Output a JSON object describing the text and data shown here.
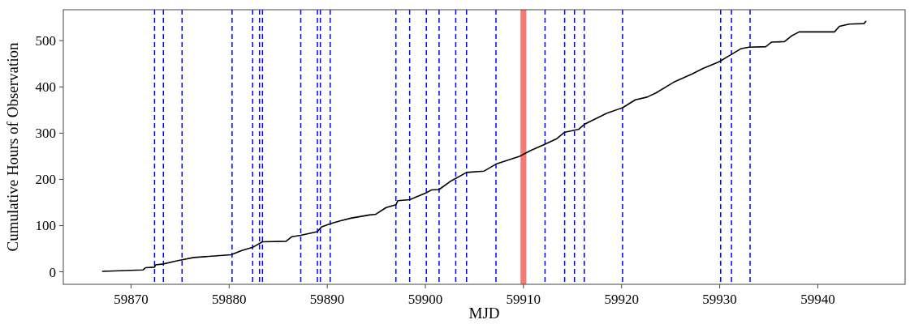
{
  "chart_data": {
    "type": "line",
    "xlabel": "MJD",
    "ylabel": "Cumulative Hours of Observation",
    "xlim": [
      59863.1,
      59948.9
    ],
    "ylim": [
      -27,
      567
    ],
    "xticks": [
      59870,
      59880,
      59890,
      59900,
      59910,
      59920,
      59930,
      59940
    ],
    "yticks": [
      0,
      100,
      200,
      300,
      400,
      500
    ],
    "grid": false,
    "series": [
      {
        "color": "#000000",
        "x": [
          59867.1,
          59871.2,
          59871.5,
          59872.4,
          59872.5,
          59873.3,
          59874.5,
          59875.2,
          59876.4,
          59880.2,
          59881.3,
          59882.4,
          59883.4,
          59885.8,
          59886.4,
          59887.3,
          59889.0,
          59889.4,
          59890.3,
          59891.3,
          59892.4,
          59894.3,
          59894.9,
          59896.0,
          59897.0,
          59897.2,
          59898.4,
          59900.1,
          59900.6,
          59901.4,
          59902.5,
          59904.2,
          59906.0,
          59907.2,
          59909.6,
          59910.7,
          59912.2,
          59913.4,
          59914.2,
          59915.6,
          59916.2,
          59918.5,
          59920.1,
          59921.4,
          59922.6,
          59923.5,
          59925.3,
          59927.2,
          59928.3,
          59929.9,
          59931.1,
          59932.2,
          59933.0,
          59934.7,
          59935.3,
          59936.6,
          59937.3,
          59938.1,
          59941.7,
          59942.2,
          59943.2,
          59944.7,
          59944.9
        ],
        "values": [
          1,
          4,
          9,
          10,
          15,
          17,
          23,
          26,
          31,
          37,
          46,
          53,
          65,
          66,
          76,
          79,
          87,
          97,
          104,
          110,
          116,
          123,
          124,
          139,
          145,
          154,
          156,
          171,
          177,
          178,
          195,
          215,
          218,
          233,
          250,
          262,
          276,
          288,
          302,
          308,
          319,
          343,
          355,
          372,
          378,
          387,
          410,
          428,
          440,
          454,
          469,
          483,
          486,
          487,
          497,
          498,
          510,
          519,
          519,
          531,
          536,
          537,
          542
        ]
      }
    ],
    "line_style": "solid",
    "marker": "none",
    "ref_lines": [
      {
        "axis": "x",
        "value": 59872.4,
        "color": "#0000ff",
        "line_style": "dashed"
      },
      {
        "axis": "x",
        "value": 59873.3,
        "color": "#0000ff",
        "line_style": "dashed"
      },
      {
        "axis": "x",
        "value": 59875.2,
        "color": "#0000ff",
        "line_style": "dashed"
      },
      {
        "axis": "x",
        "value": 59880.3,
        "color": "#0000ff",
        "line_style": "dashed"
      },
      {
        "axis": "x",
        "value": 59882.4,
        "color": "#0000ff",
        "line_style": "dashed"
      },
      {
        "axis": "x",
        "value": 59883.1,
        "color": "#0000ff",
        "line_style": "dashed"
      },
      {
        "axis": "x",
        "value": 59883.4,
        "color": "#0000ff",
        "line_style": "dashed"
      },
      {
        "axis": "x",
        "value": 59887.3,
        "color": "#0000ff",
        "line_style": "dashed"
      },
      {
        "axis": "x",
        "value": 59889.0,
        "color": "#0000ff",
        "line_style": "dashed"
      },
      {
        "axis": "x",
        "value": 59889.3,
        "color": "#0000ff",
        "line_style": "dashed"
      },
      {
        "axis": "x",
        "value": 59890.3,
        "color": "#0000ff",
        "line_style": "dashed"
      },
      {
        "axis": "x",
        "value": 59897.0,
        "color": "#0000ff",
        "line_style": "dashed"
      },
      {
        "axis": "x",
        "value": 59898.4,
        "color": "#0000ff",
        "line_style": "dashed"
      },
      {
        "axis": "x",
        "value": 59900.1,
        "color": "#0000ff",
        "line_style": "dashed"
      },
      {
        "axis": "x",
        "value": 59901.4,
        "color": "#0000ff",
        "line_style": "dashed"
      },
      {
        "axis": "x",
        "value": 59903.1,
        "color": "#0000ff",
        "line_style": "dashed"
      },
      {
        "axis": "x",
        "value": 59904.2,
        "color": "#0000ff",
        "line_style": "dashed"
      },
      {
        "axis": "x",
        "value": 59907.2,
        "color": "#0000ff",
        "line_style": "dashed"
      },
      {
        "axis": "x",
        "value": 59912.2,
        "color": "#0000ff",
        "line_style": "dashed"
      },
      {
        "axis": "x",
        "value": 59914.2,
        "color": "#0000ff",
        "line_style": "dashed"
      },
      {
        "axis": "x",
        "value": 59915.2,
        "color": "#0000ff",
        "line_style": "dashed"
      },
      {
        "axis": "x",
        "value": 59916.2,
        "color": "#0000ff",
        "line_style": "dashed"
      },
      {
        "axis": "x",
        "value": 59920.1,
        "color": "#0000ff",
        "line_style": "dashed"
      },
      {
        "axis": "x",
        "value": 59930.1,
        "color": "#0000ff",
        "line_style": "dashed"
      },
      {
        "axis": "x",
        "value": 59931.2,
        "color": "#0000ff",
        "line_style": "dashed"
      },
      {
        "axis": "x",
        "value": 59933.1,
        "color": "#0000ff",
        "line_style": "dashed"
      }
    ],
    "bands": [
      {
        "axis": "x",
        "from": 59909.7,
        "to": 59910.3,
        "color": "#f47a74"
      }
    ]
  }
}
